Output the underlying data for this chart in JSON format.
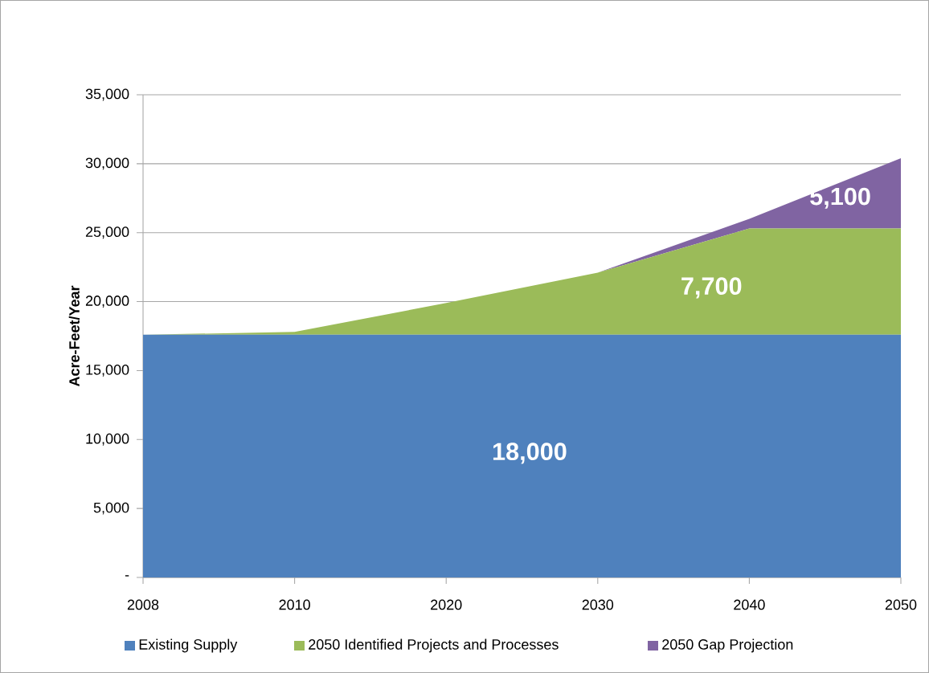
{
  "chart_data": {
    "type": "area",
    "stacked": true,
    "ylabel": "Acre-Feet/Year",
    "categories": [
      "2008",
      "2010",
      "2020",
      "2030",
      "2040",
      "2050"
    ],
    "series": [
      {
        "name": "Existing Supply",
        "color": "#4f81bd",
        "values": [
          17600,
          17600,
          17600,
          17600,
          17600,
          17600
        ]
      },
      {
        "name": "2050 Identified Projects and Processes",
        "color": "#9bbb59",
        "values": [
          0,
          200,
          2300,
          4500,
          7700,
          7700
        ]
      },
      {
        "name": "2050 Gap Projection",
        "color": "#8064a2",
        "values": [
          0,
          0,
          0,
          0,
          700,
          5100
        ]
      }
    ],
    "ylim": [
      0,
      35000
    ],
    "yticks": [
      {
        "value": 0,
        "label": "-"
      },
      {
        "value": 5000,
        "label": "5,000"
      },
      {
        "value": 10000,
        "label": "10,000"
      },
      {
        "value": 15000,
        "label": "15,000"
      },
      {
        "value": 20000,
        "label": "20,000"
      },
      {
        "value": 25000,
        "label": "25,000"
      },
      {
        "value": 30000,
        "label": "30,000"
      },
      {
        "value": 35000,
        "label": "35,000"
      }
    ],
    "annotations": [
      "18,000",
      "7,700",
      "5,100"
    ],
    "grid": "y",
    "legend": "bottom"
  }
}
